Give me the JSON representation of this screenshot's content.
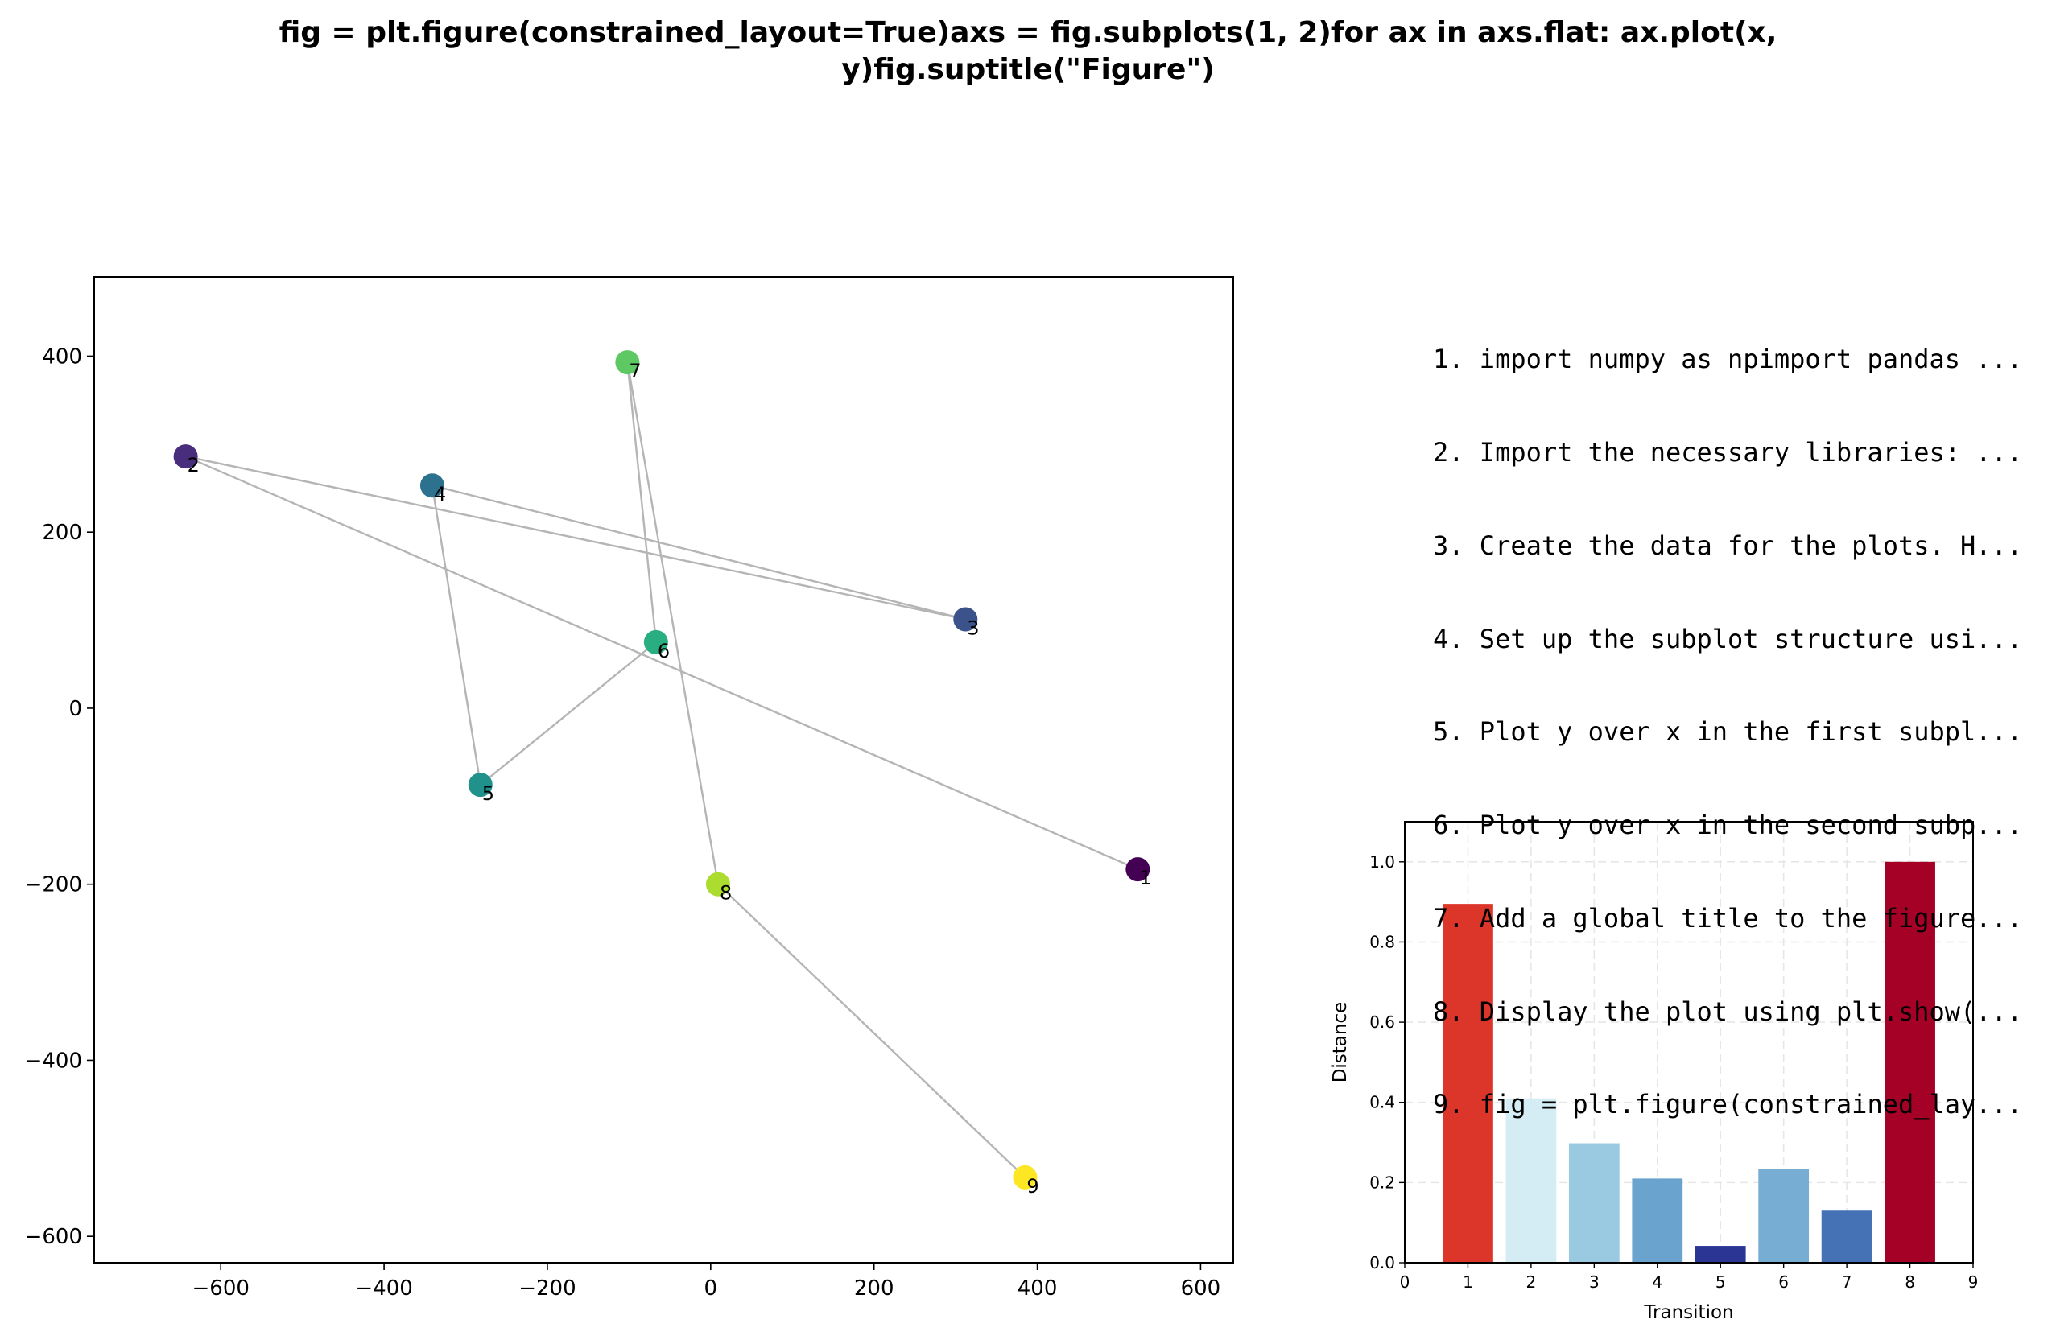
{
  "figure": {
    "title_lines": [
      "fig = plt.figure(constrained_layout=True)axs = fig.subplots(1, 2)for ax in axs.flat:    ax.plot(x,",
      "y)fig.suptitle(\"Figure\")"
    ]
  },
  "steps": [
    "1. import numpy as npimport pandas ...",
    "2. Import the necessary libraries: ...",
    "3. Create the data for the plots. H...",
    "4. Set up the subplot structure usi...",
    "5. Plot y over x in the first subpl...",
    "6. Plot y over x in the second subp...",
    "7. Add a global title to the figure...",
    "8. Display the plot using plt.show(...",
    "9. fig = plt.figure(constrained_lay..."
  ],
  "colors": {
    "path_line": "#b5b5b5",
    "grid": "#e6e6e6"
  },
  "chart_data": [
    {
      "type": "scatter",
      "title": "",
      "xlabel": "",
      "ylabel": "",
      "xlim": [
        -755,
        640
      ],
      "ylim": [
        -630,
        490
      ],
      "xticks": [
        -600,
        -400,
        -200,
        0,
        200,
        400,
        600
      ],
      "yticks": [
        -600,
        -400,
        -200,
        0,
        200,
        400
      ],
      "xtick_labels": [
        "−600",
        "−400",
        "−200",
        "0",
        "200",
        "400",
        "600"
      ],
      "ytick_labels": [
        "−600",
        "−400",
        "−200",
        "0",
        "200",
        "400"
      ],
      "grid": false,
      "connected": true,
      "points": [
        {
          "label": "1",
          "x": 523,
          "y": -183,
          "color": "#440154"
        },
        {
          "label": "2",
          "x": -643,
          "y": 286,
          "color": "#472d7b"
        },
        {
          "label": "3",
          "x": 312,
          "y": 101,
          "color": "#3b528b"
        },
        {
          "label": "4",
          "x": -341,
          "y": 253,
          "color": "#2c728e"
        },
        {
          "label": "5",
          "x": -282,
          "y": -87,
          "color": "#21918c"
        },
        {
          "label": "6",
          "x": -67,
          "y": 75,
          "color": "#28ae80"
        },
        {
          "label": "7",
          "x": -102,
          "y": 393,
          "color": "#5ec962"
        },
        {
          "label": "8",
          "x": 9,
          "y": -200,
          "color": "#addc30"
        },
        {
          "label": "9",
          "x": 385,
          "y": -533,
          "color": "#fde725"
        }
      ]
    },
    {
      "type": "bar",
      "title": "",
      "xlabel": "Transition",
      "ylabel": "Distance",
      "xlim": [
        0,
        9
      ],
      "ylim": [
        0,
        1.1
      ],
      "xticks": [
        0,
        1,
        2,
        3,
        4,
        5,
        6,
        7,
        8,
        9
      ],
      "xtick_labels": [
        "0",
        "1",
        "2",
        "3",
        "4",
        "5",
        "6",
        "7",
        "8",
        "9"
      ],
      "yticks": [
        0.0,
        0.2,
        0.4,
        0.6,
        0.8,
        1.0
      ],
      "ytick_labels": [
        "0.0",
        "0.2",
        "0.4",
        "0.6",
        "0.8",
        "1.0"
      ],
      "grid": true,
      "bar_width": 0.8,
      "categories": [
        1,
        2,
        3,
        4,
        5,
        6,
        7,
        8
      ],
      "values": [
        0.895,
        0.41,
        0.298,
        0.21,
        0.042,
        0.233,
        0.13,
        1.0
      ],
      "bar_colors": [
        "#dc3529",
        "#d4ecf4",
        "#9acae1",
        "#6aa3cd",
        "#2b3594",
        "#78add3",
        "#4572b5",
        "#a50026"
      ]
    }
  ]
}
